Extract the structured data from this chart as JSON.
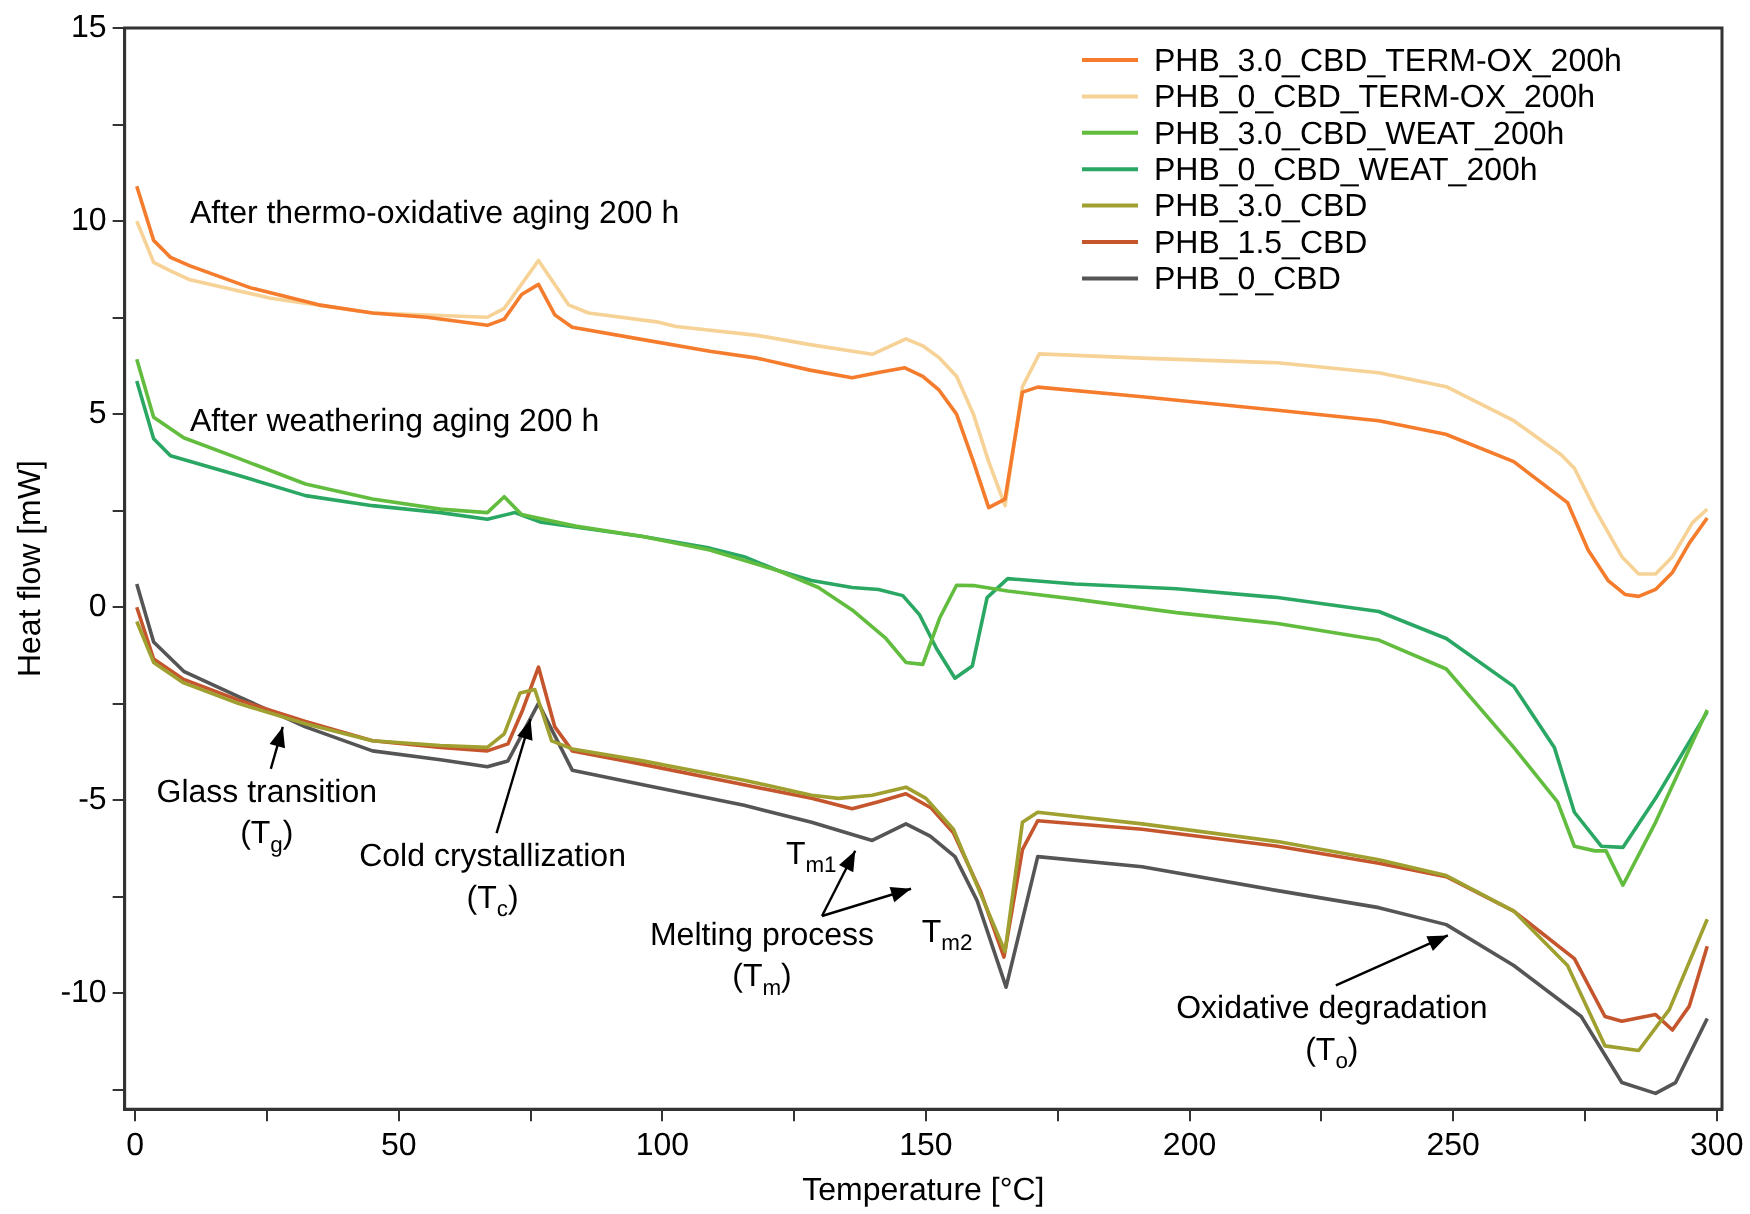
{
  "chart_data": {
    "type": "line",
    "xlabel": "Temperature [°C]",
    "ylabel": "Heat flow [mW]",
    "xlim": [
      -2,
      301
    ],
    "ylim": [
      -13,
      15
    ],
    "xticks": [
      0,
      {
        "value": 25,
        "label": null
      },
      50,
      {
        "value": 75,
        "label": null
      },
      100,
      {
        "value": 125,
        "label": null
      },
      150,
      {
        "value": 175,
        "label": null
      },
      200,
      {
        "value": 225,
        "label": null
      },
      250,
      {
        "value": 275,
        "label": null
      },
      300
    ],
    "yticks": [
      {
        "value": -12.5,
        "label": null
      },
      -10,
      {
        "value": -7.5,
        "label": null
      },
      -5,
      {
        "value": -2.5,
        "label": null
      },
      0,
      {
        "value": 2.5,
        "label": null
      },
      5,
      {
        "value": 7.5,
        "label": null
      },
      10,
      {
        "value": 12.5,
        "label": null
      },
      15
    ],
    "grid": false,
    "legend": "top right",
    "marker": "none",
    "line_style": "solid",
    "series": [
      {
        "name": "PHB_3.0_CBD_TERM-OX_200h",
        "color": "#f47c2c",
        "x": [
          0.3,
          3.5,
          6.7,
          10.4,
          21.9,
          34.8,
          45,
          55.3,
          66.8,
          70,
          73.3,
          76.5,
          79.6,
          82.9,
          96.3,
          109,
          118,
          128,
          136,
          141,
          146,
          149.4,
          152.5,
          155.8,
          159,
          161.9,
          165,
          168.3,
          171.2,
          191,
          216.7,
          235.9,
          248.6,
          261.5,
          271.7,
          275.6,
          279.4,
          282.6,
          285.2,
          288.4,
          291.6,
          294.8,
          298.2
        ],
        "values": [
          10.9,
          9.5,
          9.06,
          8.84,
          8.27,
          7.83,
          7.62,
          7.51,
          7.3,
          7.46,
          8.1,
          8.36,
          7.57,
          7.25,
          6.93,
          6.63,
          6.45,
          6.14,
          5.94,
          6.08,
          6.2,
          5.98,
          5.62,
          5.0,
          3.77,
          2.58,
          2.8,
          5.57,
          5.7,
          5.45,
          5.1,
          4.83,
          4.48,
          3.77,
          2.71,
          1.48,
          0.69,
          0.33,
          0.28,
          0.46,
          0.9,
          1.66,
          2.31
        ]
      },
      {
        "name": "PHB_0_CBD_TERM-OX_200h",
        "color": "#f6d296",
        "x": [
          0.3,
          3.5,
          6.7,
          10.4,
          25.7,
          45,
          66.8,
          70,
          76.5,
          82.2,
          86,
          98.9,
          102.6,
          118,
          128,
          139.8,
          146.2,
          149.4,
          152.6,
          155.8,
          159,
          161.9,
          165,
          168.3,
          171.5,
          191,
          216.7,
          235.9,
          248.7,
          261.5,
          270.5,
          273,
          276.9,
          282,
          285.2,
          288.4,
          291.6,
          295.4,
          298.2
        ],
        "values": [
          10.0,
          8.93,
          8.71,
          8.48,
          8.0,
          7.62,
          7.51,
          7.74,
          8.98,
          7.83,
          7.62,
          7.39,
          7.27,
          7.04,
          6.8,
          6.55,
          6.95,
          6.77,
          6.45,
          5.98,
          5.0,
          3.77,
          2.63,
          5.71,
          6.56,
          6.45,
          6.33,
          6.07,
          5.71,
          4.83,
          3.95,
          3.6,
          2.54,
          1.31,
          0.86,
          0.86,
          1.31,
          2.19,
          2.54
        ]
      },
      {
        "name": "PHB_3.0_CBD_WEAT_200h",
        "color": "#62bd3f",
        "x": [
          0.3,
          3.5,
          9.2,
          19.5,
          32.3,
          45,
          57.9,
          66.8,
          70,
          73.3,
          83.5,
          96.3,
          109,
          121.9,
          129.6,
          136,
          142.4,
          146.2,
          149.4,
          152.6,
          155.8,
          159,
          165.5,
          178.3,
          197.5,
          216.7,
          235.9,
          248.7,
          261.5,
          269.8,
          273,
          276.9,
          279,
          282.2,
          288.4,
          298.2
        ],
        "values": [
          6.42,
          4.92,
          4.39,
          3.86,
          3.19,
          2.8,
          2.54,
          2.45,
          2.86,
          2.4,
          2.1,
          1.83,
          1.48,
          0.95,
          0.51,
          -0.07,
          -0.81,
          -1.43,
          -1.48,
          -0.28,
          0.57,
          0.56,
          0.42,
          0.21,
          -0.14,
          -0.42,
          -0.85,
          -1.6,
          -3.63,
          -5.04,
          -6.19,
          -6.31,
          -6.31,
          -7.2,
          -5.57,
          -2.66
        ]
      },
      {
        "name": "PHB_0_CBD_WEAT_200h",
        "color": "#2ba764",
        "x": [
          0.3,
          3.5,
          6.7,
          19.5,
          32.3,
          45,
          57.9,
          66.8,
          72,
          77,
          96.3,
          109,
          115.5,
          121.9,
          128.3,
          136,
          141,
          145.6,
          148.8,
          152,
          155.5,
          158.8,
          161.6,
          165.5,
          178.3,
          197.5,
          216.7,
          235.9,
          248.7,
          261.5,
          269.2,
          273,
          278.1,
          282.2,
          288.4,
          298.2
        ],
        "values": [
          5.86,
          4.36,
          3.92,
          3.42,
          2.89,
          2.63,
          2.45,
          2.28,
          2.45,
          2.2,
          1.83,
          1.53,
          1.31,
          0.95,
          0.69,
          0.51,
          0.46,
          0.3,
          -0.2,
          -1.07,
          -1.84,
          -1.52,
          0.25,
          0.74,
          0.6,
          0.48,
          0.25,
          -0.11,
          -0.81,
          -2.05,
          -3.63,
          -5.31,
          -6.19,
          -6.22,
          -4.95,
          -2.71
        ]
      },
      {
        "name": "PHB_3.0_CBD",
        "color": "#a0a030",
        "x": [
          0.3,
          3.5,
          9.2,
          19.5,
          32.3,
          45,
          57.9,
          66.8,
          70,
          73,
          75.8,
          79,
          82.9,
          96.3,
          115.5,
          128.3,
          133.4,
          139.8,
          146.2,
          150,
          155.2,
          159,
          165,
          168.3,
          171.2,
          191,
          216.7,
          235.9,
          248.7,
          261.5,
          271.7,
          278.8,
          285.2,
          291,
          298.2
        ],
        "values": [
          -0.37,
          -1.43,
          -1.96,
          -2.49,
          -3.02,
          -3.46,
          -3.58,
          -3.63,
          -3.28,
          -2.22,
          -2.13,
          -3.46,
          -3.67,
          -3.98,
          -4.48,
          -4.87,
          -4.95,
          -4.87,
          -4.66,
          -4.95,
          -5.75,
          -6.98,
          -8.92,
          -5.57,
          -5.31,
          -5.61,
          -6.07,
          -6.54,
          -6.95,
          -7.87,
          -9.28,
          -11.36,
          -11.48,
          -10.42,
          -8.08
        ]
      },
      {
        "name": "PHB_1.5_CBD",
        "color": "#c4552c",
        "x": [
          0.3,
          3.5,
          9.2,
          19.5,
          32.3,
          45,
          57.9,
          66.8,
          70.7,
          73.5,
          76.5,
          79.6,
          82.9,
          96.3,
          115.5,
          128.3,
          136,
          141,
          146.2,
          151,
          155.2,
          160.3,
          164.8,
          168.3,
          171.2,
          191,
          216.7,
          235.9,
          248.7,
          261.5,
          273,
          278.8,
          282,
          288.4,
          291.6,
          294.8,
          298.2
        ],
        "values": [
          0,
          -1.34,
          -1.87,
          -2.4,
          -2.96,
          -3.46,
          -3.63,
          -3.72,
          -3.54,
          -2.66,
          -1.55,
          -3.1,
          -3.72,
          -4.07,
          -4.6,
          -4.95,
          -5.22,
          -5.04,
          -4.83,
          -5.2,
          -5.84,
          -7.34,
          -9.06,
          -6.28,
          -5.53,
          -5.75,
          -6.19,
          -6.63,
          -6.98,
          -7.87,
          -9.1,
          -10.6,
          -10.72,
          -10.55,
          -10.95,
          -10.33,
          -8.78
        ]
      },
      {
        "name": "PHB_0_CBD",
        "color": "#555555",
        "x": [
          0.3,
          3.5,
          9.2,
          19.5,
          32.3,
          45,
          57.9,
          66.8,
          70.7,
          76.5,
          82.9,
          96.3,
          115.5,
          128.3,
          139.8,
          146.2,
          150.8,
          155.5,
          159.7,
          165.2,
          171.2,
          191,
          216.7,
          235.9,
          248.7,
          261.5,
          274.3,
          282,
          288.4,
          292.2,
          298.2
        ],
        "values": [
          0.6,
          -0.9,
          -1.66,
          -2.31,
          -3.1,
          -3.72,
          -3.95,
          -4.13,
          -3.98,
          -2.49,
          -4.22,
          -4.6,
          -5.13,
          -5.57,
          -6.04,
          -5.61,
          -5.93,
          -6.46,
          -7.6,
          -9.84,
          -6.46,
          -6.72,
          -7.34,
          -7.78,
          -8.22,
          -9.28,
          -10.6,
          -12.31,
          -12.59,
          -12.31,
          -10.65
        ]
      }
    ],
    "annotations": [
      "After thermo-oxidative aging 200 h",
      "After weathering aging 200 h",
      {
        "text": "Glass transition\n(T$_{g}$)",
        "x": 28,
        "y": -3.1
      },
      {
        "text": "Cold crystallization\n(T$_{c}$)",
        "x": 75,
        "y": -2.9
      },
      {
        "text": "T$_{m1}$",
        "x": 140,
        "y": -6.1
      },
      {
        "text": "T$_{m2}$",
        "x": 165,
        "y": -9
      },
      "Melting process\n(T$_{m}$)",
      {
        "text": "Oxidative degradation\n(T$_{o}$)",
        "x": 249,
        "y": -8.5
      }
    ]
  }
}
